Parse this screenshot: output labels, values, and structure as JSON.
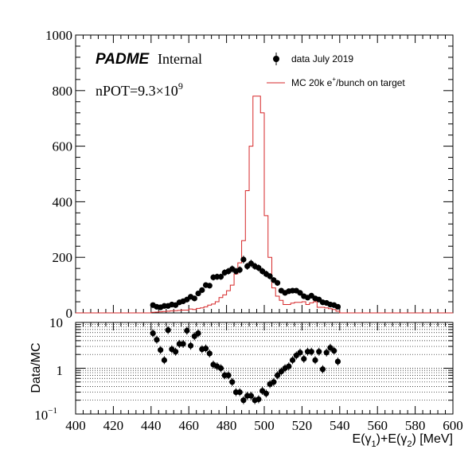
{
  "annotations": {
    "brand": "PADME",
    "brand_suffix": "Internal",
    "npot_prefix": "nPOT=9.3×10",
    "npot_exponent": "9"
  },
  "legend": {
    "data_label": "data July 2019",
    "mc_label_pre": "MC 20k e",
    "mc_label_sup": "+",
    "mc_label_post": "/bunch on target"
  },
  "top_axis": {
    "y_ticks": [
      "0",
      "200",
      "400",
      "600",
      "800",
      "1000"
    ]
  },
  "bottom_axis": {
    "ylabel": "Data/MC",
    "y_ticks_main": [
      "10",
      "1",
      "10"
    ],
    "y_tick_min_exp": "−1",
    "x_ticks": [
      "400",
      "420",
      "440",
      "460",
      "480",
      "500",
      "520",
      "540",
      "560",
      "580",
      "600"
    ],
    "xlabel": {
      "p1": "E(γ",
      "s1": "1",
      "p2": ")+E(γ",
      "s2": "2",
      "p3": ") [MeV]"
    }
  },
  "colors": {
    "mc": "#d62728",
    "data": "#000000",
    "axis": "#000000"
  },
  "chart_data": [
    {
      "type": "line",
      "panel": "distribution",
      "xlim": [
        400,
        600
      ],
      "ylim": [
        0,
        1000
      ],
      "series": [
        {
          "name": "MC 20k e+/bunch on target",
          "style": "step",
          "bin_width": 2,
          "bin_low_edges": [
            400,
            402,
            404,
            406,
            408,
            410,
            412,
            414,
            416,
            418,
            420,
            422,
            424,
            426,
            428,
            430,
            432,
            434,
            436,
            438,
            440,
            442,
            444,
            446,
            448,
            450,
            452,
            454,
            456,
            458,
            460,
            462,
            464,
            466,
            468,
            470,
            472,
            474,
            476,
            478,
            480,
            482,
            484,
            486,
            488,
            490,
            492,
            494,
            496,
            498,
            500,
            502,
            504,
            506,
            508,
            510,
            512,
            514,
            516,
            518,
            520,
            522,
            524,
            526,
            528,
            530,
            532,
            534,
            536,
            538,
            540,
            542,
            544,
            546,
            548,
            550,
            552,
            554,
            556,
            558,
            560,
            562,
            564,
            566,
            568,
            570,
            572,
            574,
            576,
            578,
            580,
            582,
            584,
            586,
            588,
            590,
            592,
            594,
            596,
            598
          ],
          "values": [
            0,
            0,
            0,
            0,
            0,
            0,
            0,
            0,
            0,
            0,
            0,
            0,
            0,
            0,
            0,
            0,
            0,
            0,
            0,
            0,
            2,
            3,
            4,
            5,
            6,
            7,
            8,
            9,
            10,
            10,
            14,
            12,
            16,
            18,
            22,
            28,
            32,
            40,
            55,
            65,
            80,
            100,
            140,
            180,
            260,
            440,
            600,
            780,
            780,
            720,
            350,
            200,
            90,
            60,
            45,
            30,
            30,
            35,
            38,
            38,
            40,
            30,
            36,
            40,
            20,
            20,
            18,
            15,
            12,
            6,
            0,
            0,
            0,
            0,
            0,
            0,
            0,
            0,
            0,
            0,
            0,
            0,
            0,
            0,
            0,
            0,
            0,
            0,
            0,
            0,
            0,
            0,
            0,
            0,
            0,
            0,
            0,
            0,
            0,
            0
          ]
        },
        {
          "name": "data July 2019",
          "style": "points",
          "x": [
            441,
            443,
            445,
            447,
            449,
            451,
            453,
            455,
            457,
            459,
            461,
            463,
            465,
            467,
            469,
            471,
            473,
            475,
            477,
            479,
            481,
            483,
            485,
            487,
            489,
            491,
            493,
            495,
            497,
            499,
            501,
            503,
            505,
            507,
            509,
            511,
            513,
            515,
            517,
            519,
            521,
            523,
            525,
            527,
            529,
            531,
            533,
            535,
            537,
            539
          ],
          "y": [
            28,
            22,
            20,
            25,
            25,
            30,
            28,
            38,
            42,
            48,
            58,
            52,
            70,
            82,
            100,
            98,
            128,
            130,
            130,
            145,
            150,
            158,
            150,
            155,
            192,
            168,
            178,
            168,
            162,
            150,
            140,
            132,
            118,
            108,
            80,
            72,
            78,
            80,
            80,
            72,
            60,
            55,
            62,
            52,
            48,
            38,
            36,
            30,
            28,
            22
          ]
        }
      ]
    },
    {
      "type": "scatter",
      "panel": "ratio",
      "ylabel": "Data/MC",
      "xlabel": "E(γ1)+E(γ2) [MeV]",
      "xlim": [
        400,
        600
      ],
      "ylim": [
        0.1,
        10
      ],
      "yscale": "log",
      "grid": true,
      "series": [
        {
          "name": "Data/MC",
          "x": [
            441,
            443,
            445,
            447,
            449,
            451,
            453,
            455,
            457,
            459,
            461,
            463,
            465,
            467,
            469,
            471,
            473,
            475,
            477,
            479,
            481,
            483,
            485,
            487,
            489,
            491,
            493,
            495,
            497,
            499,
            501,
            503,
            505,
            507,
            509,
            511,
            513,
            515,
            517,
            519,
            521,
            523,
            525,
            527,
            529,
            531,
            533,
            535,
            537,
            539
          ],
          "y": [
            5.8,
            4.2,
            2.5,
            1.5,
            6.8,
            2.6,
            2.3,
            3.4,
            3.4,
            6.6,
            3.1,
            5.0,
            5.8,
            2.6,
            2.7,
            2.1,
            1.2,
            1.1,
            1.0,
            0.7,
            0.7,
            0.5,
            0.3,
            0.3,
            0.2,
            0.25,
            0.25,
            0.2,
            0.21,
            0.32,
            0.28,
            0.45,
            0.5,
            0.7,
            0.85,
            1.0,
            1.1,
            1.5,
            1.9,
            2.2,
            1.6,
            2.3,
            2.3,
            1.5,
            2.3,
            0.95,
            2.2,
            2.8,
            2.4,
            1.4
          ]
        }
      ]
    }
  ]
}
